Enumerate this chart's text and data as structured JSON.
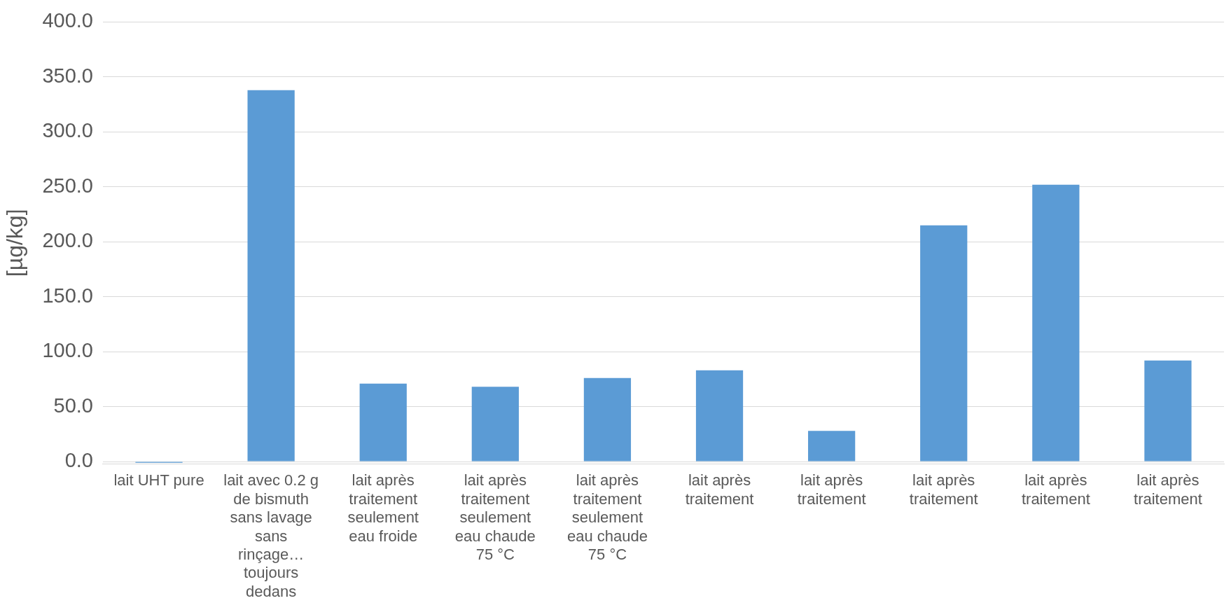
{
  "chart_data": {
    "type": "bar",
    "ylabel": "[µg/kg]",
    "categories": [
      "lait UHT pure",
      "lait avec 0.2 g de bismuth sans lavage sans rinçage… toujours dedans",
      "lait après traitement seulement eau froide",
      "lait après traitement seulement eau chaude 75 °C",
      "lait après traitement seulement eau chaude 75 °C",
      "lait après traitement",
      "lait après traitement",
      "lait après traitement",
      "lait après traitement",
      "lait après traitement"
    ],
    "values": [
      -1,
      338,
      71,
      68,
      76,
      83,
      28,
      215,
      252,
      92
    ],
    "color": "#5b9bd5",
    "ylim": [
      -2,
      400
    ],
    "yticks": [
      {
        "value": 0,
        "label": "0.0"
      },
      {
        "value": 50,
        "label": "50.0"
      },
      {
        "value": 100,
        "label": "100.0"
      },
      {
        "value": 150,
        "label": "150.0"
      },
      {
        "value": 200,
        "label": "200.0"
      },
      {
        "value": 250,
        "label": "250.0"
      },
      {
        "value": 300,
        "label": "300.0"
      },
      {
        "value": 350,
        "label": "350.0"
      },
      {
        "value": 400,
        "label": "400.0"
      }
    ],
    "grid": "y",
    "legend": false
  }
}
